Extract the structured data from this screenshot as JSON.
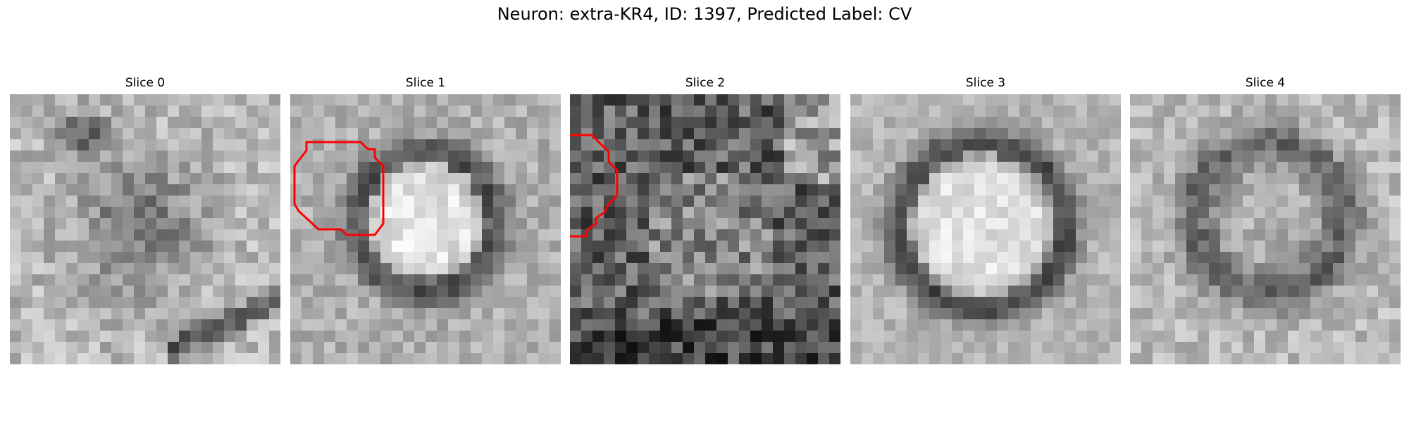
{
  "figure": {
    "title": "Neuron: extra-KR4, ID: 1397, Predicted Label: CV"
  },
  "colors": {
    "contour": "#ff0000",
    "background": "#ffffff"
  },
  "panels": [
    {
      "title": "Slice 0",
      "has_contour": false
    },
    {
      "title": "Slice 1",
      "has_contour": true
    },
    {
      "title": "Slice 2",
      "has_contour": true
    },
    {
      "title": "Slice 3",
      "has_contour": true
    },
    {
      "title": "Slice 4",
      "has_contour": true
    }
  ]
}
